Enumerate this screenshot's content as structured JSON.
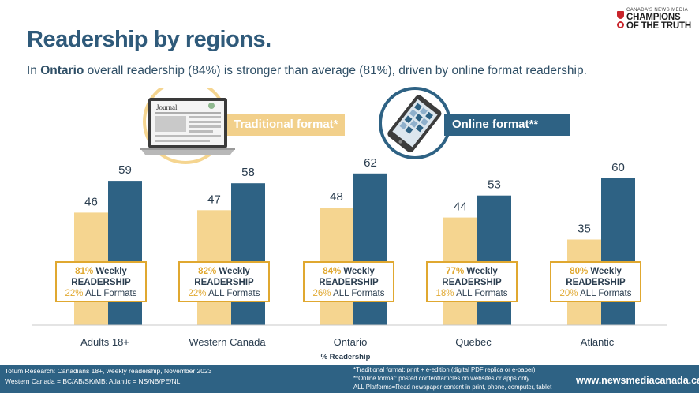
{
  "header": {
    "title": "Readership by regions.",
    "subtitle_pre": "In ",
    "subtitle_bold": "Ontario",
    "subtitle_post": " overall readership (84%) is stronger than average (81%), driven by online format readership."
  },
  "logo": {
    "small_text": "CANADA'S NEWS MEDIA",
    "line1": "CHAMPIONS",
    "line2": "OF THE TRUTH",
    "accent": "#c8242b"
  },
  "legend": {
    "traditional": "Traditional format*",
    "online": "Online format**",
    "laptop_masthead": "Journal"
  },
  "chart_data": {
    "type": "bar",
    "categories": [
      "Adults 18+",
      "Western Canada",
      "Ontario",
      "Quebec",
      "Atlantic"
    ],
    "series": [
      {
        "name": "Traditional format*",
        "values": [
          46,
          47,
          48,
          44,
          35
        ],
        "color": "#f5d590"
      },
      {
        "name": "Online format**",
        "values": [
          59,
          58,
          62,
          53,
          60
        ],
        "color": "#2e6284"
      }
    ],
    "xlabel": "% Readership",
    "ylim": [
      0,
      70
    ],
    "grid": false
  },
  "callouts": [
    {
      "weekly_pct": "81%",
      "weekly_word": " Weekly",
      "readership": "READERSHIP",
      "all_pct": "22%",
      "all_word": " ALL Formats"
    },
    {
      "weekly_pct": "82%",
      "weekly_word": " Weekly",
      "readership": "READERSHIP",
      "all_pct": "22%",
      "all_word": " ALL Formats"
    },
    {
      "weekly_pct": "84%",
      "weekly_word": " Weekly",
      "readership": "READERSHIP",
      "all_pct": "26%",
      "all_word": " ALL Formats"
    },
    {
      "weekly_pct": "77%",
      "weekly_word": " Weekly",
      "readership": "READERSHIP",
      "all_pct": "18%",
      "all_word": " ALL Formats"
    },
    {
      "weekly_pct": "80%",
      "weekly_word": " Weekly",
      "readership": "READERSHIP",
      "all_pct": "20%",
      "all_word": " ALL Formats"
    }
  ],
  "footer": {
    "source_line1": "Totum Research: Canadians 18+, weekly readership, November 2023",
    "source_line2": "Western Canada = BC/AB/SK/MB;  Atlantic = NS/NB/PE/NL",
    "note1": "*Traditional format: print + e-edition (digital PDF replica or e-paper)",
    "note2": "**Online format: posted content/articles on websites or apps only",
    "note3": "ALL Platforms=Read newspaper content in print, phone, computer, tablet",
    "url": "www.newsmediacanada.ca"
  }
}
